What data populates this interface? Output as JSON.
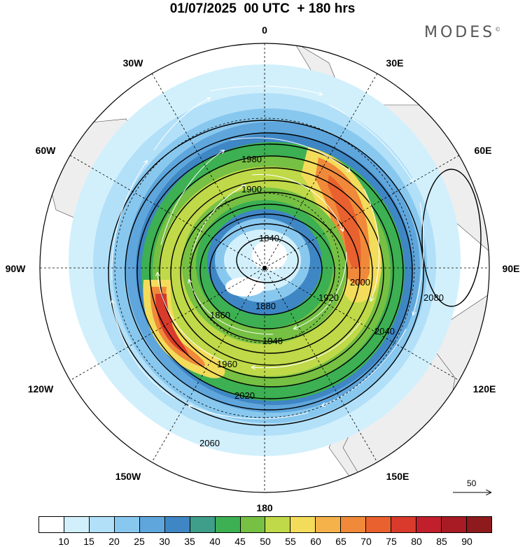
{
  "title": "01/07/2025  00 UTC  + 180 hrs",
  "brand": "MODES",
  "brand_mark": "©",
  "longitude_labels": [
    "0",
    "30E",
    "60E",
    "90E",
    "120E",
    "150E",
    "180",
    "150W",
    "120W",
    "90W",
    "60W",
    "30W"
  ],
  "contours": [
    {
      "level": 1840,
      "label": "1840"
    },
    {
      "level": 1860,
      "label": "1860"
    },
    {
      "level": 1880,
      "label": "1880"
    },
    {
      "level": 1900,
      "label": "1900"
    },
    {
      "level": 1920,
      "label": "1920"
    },
    {
      "level": 1940,
      "label": "1940"
    },
    {
      "level": 1960,
      "label": "1960"
    },
    {
      "level": 1980,
      "label": "1980"
    },
    {
      "level": 2000,
      "label": "2000"
    },
    {
      "level": 2020,
      "label": "2020"
    },
    {
      "level": 2040,
      "label": "2040"
    },
    {
      "level": 2060,
      "label": "2060"
    },
    {
      "level": 2080,
      "label": "2080"
    }
  ],
  "vector_reference": {
    "value": "50"
  },
  "colorbar": {
    "levels": [
      "10",
      "15",
      "20",
      "25",
      "30",
      "35",
      "40",
      "45",
      "50",
      "55",
      "60",
      "65",
      "70",
      "75",
      "80",
      "85",
      "90"
    ],
    "colors": [
      "#ffffff",
      "#d2f0fc",
      "#b2e0f8",
      "#89c8ee",
      "#5fa6dc",
      "#3f86c4",
      "#3e9e8a",
      "#3cb052",
      "#76c043",
      "#bfd948",
      "#f3dc5a",
      "#f5b24a",
      "#f08a3a",
      "#e8612e",
      "#d93a2b",
      "#c11f2b",
      "#a81b24",
      "#8e1a1e"
    ]
  }
}
